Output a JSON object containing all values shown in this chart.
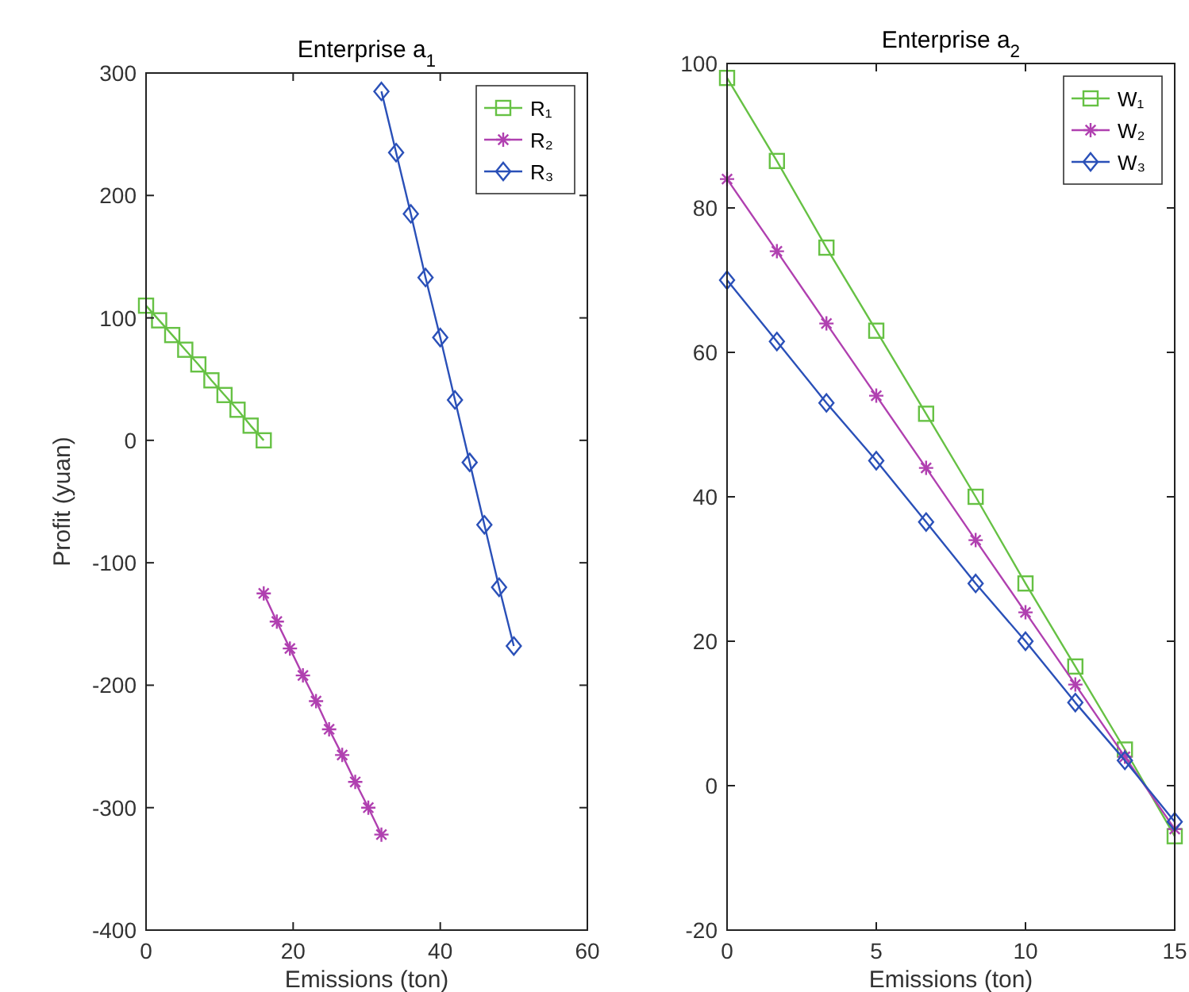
{
  "chart_data": [
    {
      "type": "line",
      "title": "Enterprise a$_{1}$",
      "xlabel": "Emissions (ton)",
      "ylabel": "Profit (yuan)",
      "xlim": [
        0,
        60
      ],
      "ylim": [
        -400,
        300
      ],
      "xticks": [
        0,
        20,
        40,
        60
      ],
      "yticks": [
        -400,
        -300,
        -200,
        -100,
        0,
        100,
        200,
        300
      ],
      "legend": "top right",
      "grid": false,
      "series": [
        {
          "name": "R₁",
          "color": "#66c144",
          "marker": "square",
          "x": [
            0,
            1.78,
            3.56,
            5.33,
            7.11,
            8.89,
            10.67,
            12.44,
            14.22,
            16
          ],
          "values": [
            110,
            98,
            86,
            74,
            62,
            49,
            37,
            25,
            12,
            0
          ]
        },
        {
          "name": "R₂",
          "color": "#b040b0",
          "marker": "cross",
          "x": [
            16,
            17.78,
            19.56,
            21.33,
            23.11,
            24.89,
            26.67,
            28.44,
            30.22,
            32
          ],
          "values": [
            -125,
            -148,
            -170,
            -192,
            -213,
            -236,
            -257,
            -279,
            -300,
            -322
          ]
        },
        {
          "name": "R₃",
          "color": "#2a50b8",
          "marker": "diamond",
          "x": [
            32,
            34,
            36,
            38,
            40,
            42,
            44,
            46,
            48,
            50
          ],
          "values": [
            285,
            235,
            185,
            133,
            84,
            33,
            -18,
            -69,
            -120,
            -168
          ]
        }
      ]
    },
    {
      "type": "line",
      "title": "Enterprise a$_{2}$",
      "xlabel": "Emissions (ton)",
      "xlim": [
        0,
        15
      ],
      "ylim": [
        -20,
        100
      ],
      "xticks": [
        0,
        5,
        10,
        15
      ],
      "yticks": [
        -20,
        0,
        20,
        40,
        60,
        80,
        100
      ],
      "legend": "top right",
      "grid": false,
      "x": [
        0,
        1.67,
        3.33,
        5,
        6.67,
        8.33,
        10,
        11.67,
        13.33,
        15
      ],
      "series": [
        {
          "name": "W₁",
          "color": "#66c144",
          "marker": "square",
          "values": [
            98,
            86.5,
            74.5,
            63,
            51.5,
            40,
            28,
            16.5,
            5,
            -7
          ]
        },
        {
          "name": "W₂",
          "color": "#b040b0",
          "marker": "cross",
          "values": [
            84,
            74,
            64,
            54,
            44,
            34,
            24,
            14,
            4,
            -6
          ]
        },
        {
          "name": "W₃",
          "color": "#2a50b8",
          "marker": "diamond",
          "values": [
            70,
            61.5,
            53,
            45,
            36.5,
            28,
            20,
            11.5,
            3.5,
            -5
          ]
        }
      ]
    }
  ]
}
